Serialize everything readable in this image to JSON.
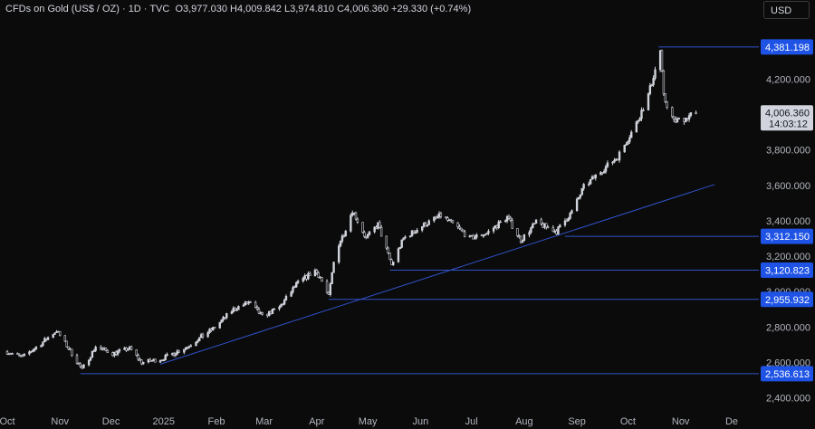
{
  "header": {
    "title": "CFDs on Gold (US$ / OZ) · 1D · TVC",
    "open": "O3,977.030",
    "high": "H4,009.842",
    "low": "L3,974.810",
    "close": "C4,006.360",
    "change": "+29.330 (+0.74%)"
  },
  "currency_button": "USD",
  "colors": {
    "background": "#0b0b0b",
    "candle": "#d1d4dc",
    "level_line": "#2f52c9",
    "tag": "#1e53e5"
  },
  "chart_data": {
    "type": "candlestick",
    "x_labels": [
      "Oct",
      "Nov",
      "Dec",
      "2025",
      "Feb",
      "Mar",
      "Apr",
      "May",
      "Jun",
      "Jul",
      "Aug",
      "Sep",
      "Oct",
      "Nov",
      "De"
    ],
    "y_ticks": [
      "2,400.000",
      "2,600.000",
      "2,800.000",
      "3,000.000",
      "3,200.000",
      "3,400.000",
      "3,600.000",
      "3,800.000",
      "4,000.000",
      "4,200.000",
      "4,400.000"
    ],
    "ylim": [
      2380,
      4460
    ],
    "horizontal_levels": [
      "4,381.198",
      "3,312.150",
      "3,120.823",
      "2,955.932",
      "2,536.613"
    ],
    "last_price": "4,006.360",
    "countdown": "14:03:12",
    "trendline": {
      "from": [
        "2024-12-30",
        2590
      ],
      "to": [
        "2025-11-21",
        3605
      ]
    },
    "price_path": [
      [
        "2024-10-01",
        2660
      ],
      [
        "2024-10-10",
        2630
      ],
      [
        "2024-10-20",
        2700
      ],
      [
        "2024-10-30",
        2780
      ],
      [
        "2024-11-06",
        2680
      ],
      [
        "2024-11-14",
        2560
      ],
      [
        "2024-11-22",
        2690
      ],
      [
        "2024-12-02",
        2650
      ],
      [
        "2024-12-12",
        2680
      ],
      [
        "2024-12-19",
        2600
      ],
      [
        "2024-12-31",
        2620
      ],
      [
        "2025-01-15",
        2690
      ],
      [
        "2025-01-30",
        2790
      ],
      [
        "2025-02-11",
        2900
      ],
      [
        "2025-02-20",
        2940
      ],
      [
        "2025-02-28",
        2860
      ],
      [
        "2025-03-10",
        2910
      ],
      [
        "2025-03-20",
        3040
      ],
      [
        "2025-03-31",
        3120
      ],
      [
        "2025-04-03",
        3080
      ],
      [
        "2025-04-08",
        2970
      ],
      [
        "2025-04-12",
        3230
      ],
      [
        "2025-04-17",
        3330
      ],
      [
        "2025-04-22",
        3460
      ],
      [
        "2025-04-30",
        3300
      ],
      [
        "2025-05-07",
        3380
      ],
      [
        "2025-05-15",
        3150
      ],
      [
        "2025-05-22",
        3300
      ],
      [
        "2025-06-02",
        3370
      ],
      [
        "2025-06-13",
        3430
      ],
      [
        "2025-06-23",
        3360
      ],
      [
        "2025-06-30",
        3300
      ],
      [
        "2025-07-10",
        3330
      ],
      [
        "2025-07-22",
        3420
      ],
      [
        "2025-07-30",
        3290
      ],
      [
        "2025-08-08",
        3390
      ],
      [
        "2025-08-20",
        3340
      ],
      [
        "2025-08-29",
        3450
      ],
      [
        "2025-09-05",
        3590
      ],
      [
        "2025-09-15",
        3680
      ],
      [
        "2025-09-25",
        3760
      ],
      [
        "2025-10-06",
        3950
      ],
      [
        "2025-10-13",
        4110
      ],
      [
        "2025-10-20",
        4360
      ],
      [
        "2025-10-22",
        4100
      ],
      [
        "2025-10-28",
        3960
      ],
      [
        "2025-11-04",
        3980
      ],
      [
        "2025-11-07",
        4000
      ],
      [
        "2025-11-10",
        4006
      ]
    ]
  }
}
